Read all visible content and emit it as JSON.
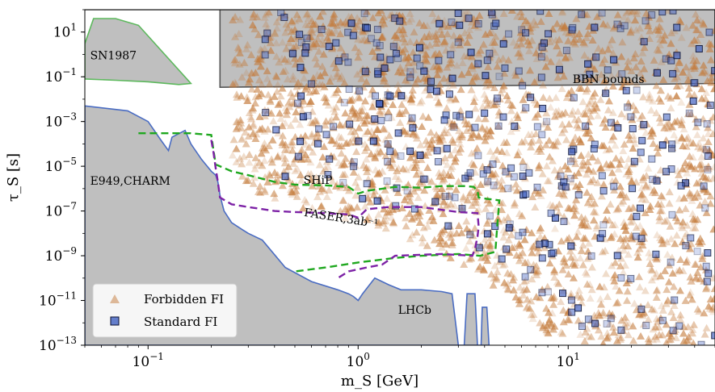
{
  "chart_data": {
    "type": "scatter",
    "xscale": "log",
    "yscale": "log",
    "xlim": [
      0.05,
      50
    ],
    "ylim": [
      1e-13,
      100
    ],
    "xlabel": "m_S [GeV]",
    "ylabel": "τ_S [s]",
    "xticks": [
      {
        "value": 0.1,
        "base": "10",
        "exp": "−1"
      },
      {
        "value": 1,
        "base": "10",
        "exp": "0"
      },
      {
        "value": 10,
        "base": "10",
        "exp": "1"
      }
    ],
    "yticks": [
      {
        "value": 10,
        "base": "10",
        "exp": "1"
      },
      {
        "value": 0.1,
        "base": "10",
        "exp": "−1"
      },
      {
        "value": 0.001,
        "base": "10",
        "exp": "−3"
      },
      {
        "value": 1e-05,
        "base": "10",
        "exp": "−5"
      },
      {
        "value": 1e-07,
        "base": "10",
        "exp": "−7"
      },
      {
        "value": 1e-09,
        "base": "10",
        "exp": "−9"
      },
      {
        "value": 1e-11,
        "base": "10",
        "exp": "−11"
      },
      {
        "value": 1e-13,
        "base": "10",
        "exp": "−13"
      }
    ],
    "colors": {
      "excluded_fill": "#b4b4b4",
      "excluded_edge": "#555555",
      "sn_edge": "#5cb85c",
      "lower_edge": "#4a6cc2",
      "ship": "#1fa81f",
      "faser": "#7d22a6",
      "forbidden": "#c47a3a",
      "standard_fill": "#4060c0",
      "standard_edge": "#0a1030"
    },
    "regions": [
      {
        "name": "BBN bounds",
        "points": [
          [
            0.05,
            100
          ],
          [
            50,
            100
          ],
          [
            50,
            0.05
          ],
          [
            10,
            0.042
          ],
          [
            1,
            0.038
          ],
          [
            0.3,
            0.035
          ],
          [
            0.22,
            0.034
          ],
          [
            0.22,
            100
          ]
        ]
      },
      {
        "name": "SN1987",
        "points": [
          [
            0.05,
            3
          ],
          [
            0.055,
            40
          ],
          [
            0.07,
            40
          ],
          [
            0.09,
            20
          ],
          [
            0.12,
            1
          ],
          [
            0.16,
            0.05
          ],
          [
            0.14,
            0.045
          ],
          [
            0.1,
            0.06
          ],
          [
            0.07,
            0.07
          ],
          [
            0.05,
            0.08
          ]
        ]
      },
      {
        "name": "E949,CHARM",
        "points": [
          [
            0.05,
            0.005
          ],
          [
            0.08,
            0.003
          ],
          [
            0.1,
            0.001
          ],
          [
            0.115,
            0.00015
          ],
          [
            0.125,
            5e-05
          ],
          [
            0.13,
            0.0002
          ],
          [
            0.15,
            0.0004
          ],
          [
            0.16,
            0.0001
          ],
          [
            0.18,
            2e-05
          ],
          [
            0.2,
            6e-06
          ],
          [
            0.21,
            4e-06
          ],
          [
            0.215,
            2e-06
          ],
          [
            0.22,
            5e-07
          ],
          [
            0.23,
            1e-07
          ],
          [
            0.25,
            3e-08
          ],
          [
            0.28,
            1.5e-08
          ],
          [
            0.3,
            1e-08
          ],
          [
            0.35,
            5e-09
          ],
          [
            0.45,
            3e-10
          ],
          [
            0.6,
            7e-11
          ],
          [
            0.8,
            3e-11
          ],
          [
            0.9,
            2e-11
          ],
          [
            0.95,
            1.5e-11
          ],
          [
            1.0,
            1e-11
          ],
          [
            1.05,
            2e-11
          ],
          [
            1.2,
            1e-10
          ],
          [
            1.4,
            5e-11
          ],
          [
            1.6,
            3e-11
          ],
          [
            2.0,
            3e-11
          ],
          [
            2.5,
            2.5e-11
          ],
          [
            2.8,
            2e-11
          ],
          [
            3.0,
            1e-13
          ],
          [
            3.2,
            1e-13
          ],
          [
            3.3,
            2e-11
          ],
          [
            3.6,
            2e-11
          ],
          [
            3.7,
            1e-13
          ],
          [
            3.85,
            1e-13
          ],
          [
            3.9,
            5e-12
          ],
          [
            4.1,
            5e-12
          ],
          [
            4.2,
            1e-13
          ],
          [
            0.05,
            1e-13
          ]
        ]
      }
    ],
    "contours": [
      {
        "name": "SHiP",
        "points": [
          [
            0.09,
            0.0003
          ],
          [
            0.12,
            0.0003
          ],
          [
            0.16,
            0.0003
          ],
          [
            0.2,
            0.00025
          ],
          [
            0.205,
            5e-05
          ],
          [
            0.21,
            1.2e-05
          ],
          [
            0.25,
            6e-06
          ],
          [
            0.3,
            4e-06
          ],
          [
            0.4,
            2e-06
          ],
          [
            0.5,
            1.5e-06
          ],
          [
            0.7,
            1.4e-06
          ],
          [
            0.9,
            1.2e-06
          ],
          [
            1.0,
            6e-07
          ],
          [
            1.1,
            8e-07
          ],
          [
            1.5,
            1.2e-06
          ],
          [
            2.0,
            1.1e-06
          ],
          [
            2.5,
            1.3e-06
          ],
          [
            3.2,
            1.3e-06
          ],
          [
            3.55,
            1.2e-06
          ],
          [
            3.7,
            8e-07
          ],
          [
            3.75,
            4e-07
          ],
          [
            4.1,
            3.5e-07
          ],
          [
            4.7,
            3e-07
          ],
          [
            4.65,
            8e-08
          ],
          [
            4.6,
            2.5e-08
          ],
          [
            4.5,
            1.5e-09
          ],
          [
            3.8,
            1e-09
          ],
          [
            3.0,
            1.2e-09
          ],
          [
            2.0,
            1e-09
          ],
          [
            1.5,
            8e-10
          ],
          [
            1.0,
            5e-10
          ],
          [
            0.7,
            3e-10
          ],
          [
            0.5,
            2e-10
          ]
        ]
      },
      {
        "name": "FASER,3ab⁻¹",
        "points": [
          [
            0.2,
            0.00015
          ],
          [
            0.205,
            4e-05
          ],
          [
            0.21,
            8e-06
          ],
          [
            0.215,
            2e-06
          ],
          [
            0.22,
            4e-07
          ],
          [
            0.25,
            2e-07
          ],
          [
            0.3,
            1.5e-07
          ],
          [
            0.4,
            1e-07
          ],
          [
            0.5,
            9e-08
          ],
          [
            0.7,
            8e-08
          ],
          [
            0.9,
            7e-08
          ],
          [
            1.0,
            5e-08
          ],
          [
            1.1,
            1.2e-07
          ],
          [
            1.4,
            1.5e-07
          ],
          [
            2.0,
            1.5e-07
          ],
          [
            3.0,
            9e-08
          ],
          [
            3.7,
            8e-08
          ],
          [
            3.75,
            2e-08
          ],
          [
            3.7,
            7e-09
          ],
          [
            3.6,
            2e-09
          ],
          [
            3.5,
            1e-09
          ],
          [
            2.5,
            1.2e-09
          ],
          [
            1.5,
            1e-09
          ],
          [
            1.3,
            4e-10
          ],
          [
            1.1,
            3e-10
          ],
          [
            0.9,
            2e-10
          ],
          [
            0.8,
            1e-10
          ]
        ]
      }
    ],
    "annotations": [
      {
        "text": "SN1987",
        "x": 0.053,
        "y": 0.6
      },
      {
        "text": "BBN bounds",
        "x": 10.5,
        "y": 0.052
      },
      {
        "text": "E949,CHARM",
        "x": 0.053,
        "y": 1.5e-06
      },
      {
        "text": "SHiP",
        "x": 0.55,
        "y": 1.6e-06
      },
      {
        "text": "LHCb",
        "x": 1.55,
        "y": 2.5e-12
      },
      {
        "text": "FASER,3ab⁻¹",
        "x": 0.55,
        "y": 6e-08
      }
    ],
    "series": [
      {
        "name": "Forbidden FI",
        "marker": "triangle",
        "color": "#c47a3a",
        "n": 2400,
        "xrange": [
          0.25,
          50
        ],
        "yrange": [
          1e-13,
          100
        ],
        "lower_edge_log_y": [
          [
            0.25,
            -4.5
          ],
          [
            0.3,
            -6
          ],
          [
            0.5,
            -6.8
          ],
          [
            1,
            -7.5
          ],
          [
            2,
            -8.5
          ],
          [
            4,
            -10
          ],
          [
            8,
            -12.5
          ],
          [
            15,
            -13
          ],
          [
            50,
            -13
          ]
        ]
      },
      {
        "name": "Standard FI",
        "marker": "square",
        "color": "#4060c0",
        "n": 330,
        "xrange": [
          0.35,
          50
        ],
        "yrange": [
          1e-13,
          100
        ],
        "lower_edge_log_y": [
          [
            0.35,
            -5.5
          ],
          [
            0.5,
            -6
          ],
          [
            1,
            -6.5
          ],
          [
            2,
            -7
          ],
          [
            4,
            -9
          ],
          [
            8,
            -11
          ],
          [
            15,
            -13
          ],
          [
            50,
            -13
          ]
        ]
      }
    ],
    "legend": {
      "position": "lower-left",
      "items": [
        "Forbidden FI",
        "Standard FI"
      ]
    }
  }
}
